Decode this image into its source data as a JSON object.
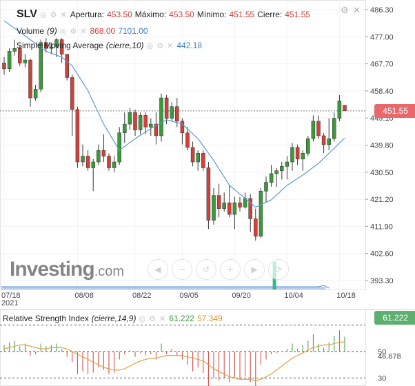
{
  "colors": {
    "up": "#3b9a3b",
    "down": "#d0413b",
    "sma": "#5b9bd5",
    "rsi_lines": "#d0413b",
    "rsi_ma": "#e0a040",
    "volume": "#2bbf7f",
    "last_price_tag": "#e8696b",
    "rsi_tag": "#5daf6f"
  },
  "header": {
    "ticker": "SLV",
    "open_label": "Apertura:",
    "open_value": "453.50",
    "high_label": "Máximo:",
    "high_value": "453.50",
    "low_label": "Mínimo:",
    "low_value": "451.55",
    "close_label": "Cierre:",
    "close_value": "451.55",
    "volume_label": "Volume",
    "volume_period": "(9)",
    "volume_value": "868.00",
    "volume_avg": "7101.00",
    "sma_label": "Simple Moving Average",
    "sma_params": "(cierre,10)",
    "sma_value": "442.18",
    "last_price_tag": "451.55",
    "controls": "◎ ⚙ ✕",
    "gear_icon": "⚙",
    "close_icon": "✕"
  },
  "rsi_header": {
    "label": "Relative Strength Index",
    "params": "(cierre,14,9)",
    "value": "61.222",
    "ma_value": "57.349",
    "tag": "61.222"
  },
  "watermark": {
    "brand": "Investing",
    "suffix": ".com"
  },
  "nav_buttons": [
    "◀",
    "－",
    "↺",
    "＋",
    "▶",
    "⟳"
  ],
  "chart_data": {
    "type": "candlestick",
    "y_ticks": [
      486.3,
      477.0,
      467.7,
      458.4,
      449.1,
      439.8,
      430.5,
      421.2,
      411.9,
      402.6,
      393.3
    ],
    "y_tick_labels": [
      "486.30",
      "477.00",
      "467.70",
      "458.40",
      "449.10",
      "439.80",
      "430.50",
      "421.20",
      "411.90",
      "402.60",
      "393.30"
    ],
    "x_labels": [
      "07/18\n2021",
      "08/08",
      "08/22",
      "09/05",
      "09/20",
      "10/04",
      "10/18"
    ],
    "last_price": 451.55,
    "candles": [
      {
        "o": 468.0,
        "h": 470.0,
        "l": 464.0,
        "c": 466.0
      },
      {
        "o": 466.0,
        "h": 473.0,
        "l": 465.0,
        "c": 472.0
      },
      {
        "o": 472.0,
        "h": 476.0,
        "l": 470.5,
        "c": 473.0
      },
      {
        "o": 473.0,
        "h": 474.0,
        "l": 467.0,
        "c": 468.0
      },
      {
        "o": 468.0,
        "h": 471.0,
        "l": 466.5,
        "c": 469.0
      },
      {
        "o": 469.0,
        "h": 469.5,
        "l": 453.0,
        "c": 456.0
      },
      {
        "o": 456.0,
        "h": 460.5,
        "l": 455.0,
        "c": 459.0
      },
      {
        "o": 459.0,
        "h": 476.0,
        "l": 458.0,
        "c": 475.0
      },
      {
        "o": 475.0,
        "h": 476.5,
        "l": 471.5,
        "c": 473.0
      },
      {
        "o": 473.0,
        "h": 475.0,
        "l": 471.0,
        "c": 473.5
      },
      {
        "o": 473.5,
        "h": 476.5,
        "l": 470.0,
        "c": 476.0
      },
      {
        "o": 476.0,
        "h": 476.5,
        "l": 468.0,
        "c": 471.0
      },
      {
        "o": 471.0,
        "h": 471.0,
        "l": 462.0,
        "c": 463.0
      },
      {
        "o": 463.0,
        "h": 464.0,
        "l": 443.0,
        "c": 452.0
      },
      {
        "o": 452.0,
        "h": 453.0,
        "l": 432.0,
        "c": 434.0
      },
      {
        "o": 434.0,
        "h": 440.0,
        "l": 432.5,
        "c": 436.0
      },
      {
        "o": 436.0,
        "h": 438.0,
        "l": 431.0,
        "c": 432.0
      },
      {
        "o": 432.0,
        "h": 435.0,
        "l": 424.0,
        "c": 434.0
      },
      {
        "o": 434.0,
        "h": 440.0,
        "l": 433.0,
        "c": 438.0
      },
      {
        "o": 438.0,
        "h": 443.5,
        "l": 434.0,
        "c": 436.0
      },
      {
        "o": 436.0,
        "h": 437.0,
        "l": 431.0,
        "c": 432.0
      },
      {
        "o": 432.0,
        "h": 436.0,
        "l": 430.5,
        "c": 434.0
      },
      {
        "o": 434.0,
        "h": 446.0,
        "l": 433.0,
        "c": 444.0
      },
      {
        "o": 444.0,
        "h": 451.0,
        "l": 440.5,
        "c": 447.0
      },
      {
        "o": 447.0,
        "h": 452.5,
        "l": 445.0,
        "c": 451.0
      },
      {
        "o": 451.0,
        "h": 452.0,
        "l": 443.0,
        "c": 445.0
      },
      {
        "o": 445.0,
        "h": 451.0,
        "l": 443.5,
        "c": 450.0
      },
      {
        "o": 450.0,
        "h": 451.0,
        "l": 443.5,
        "c": 446.0
      },
      {
        "o": 446.0,
        "h": 449.0,
        "l": 443.0,
        "c": 447.0
      },
      {
        "o": 447.0,
        "h": 451.0,
        "l": 440.0,
        "c": 443.0
      },
      {
        "o": 443.0,
        "h": 457.5,
        "l": 441.0,
        "c": 456.0
      },
      {
        "o": 456.0,
        "h": 457.0,
        "l": 447.0,
        "c": 449.0
      },
      {
        "o": 449.0,
        "h": 454.5,
        "l": 448.0,
        "c": 453.0
      },
      {
        "o": 453.0,
        "h": 456.0,
        "l": 446.0,
        "c": 448.0
      },
      {
        "o": 448.0,
        "h": 449.0,
        "l": 440.0,
        "c": 444.0
      },
      {
        "o": 444.0,
        "h": 446.0,
        "l": 438.0,
        "c": 439.0
      },
      {
        "o": 439.0,
        "h": 441.0,
        "l": 432.5,
        "c": 434.0
      },
      {
        "o": 434.0,
        "h": 438.0,
        "l": 431.0,
        "c": 437.0
      },
      {
        "o": 437.0,
        "h": 438.0,
        "l": 431.0,
        "c": 432.0
      },
      {
        "o": 432.0,
        "h": 434.0,
        "l": 411.0,
        "c": 414.0
      },
      {
        "o": 414.0,
        "h": 425.0,
        "l": 412.5,
        "c": 422.5
      },
      {
        "o": 422.5,
        "h": 426.5,
        "l": 415.0,
        "c": 418.0
      },
      {
        "o": 418.0,
        "h": 423.5,
        "l": 417.0,
        "c": 420.0
      },
      {
        "o": 420.0,
        "h": 426.0,
        "l": 415.0,
        "c": 416.0
      },
      {
        "o": 416.0,
        "h": 422.0,
        "l": 411.0,
        "c": 420.0
      },
      {
        "o": 420.0,
        "h": 422.0,
        "l": 417.0,
        "c": 418.5
      },
      {
        "o": 418.5,
        "h": 423.5,
        "l": 418.0,
        "c": 421.5
      },
      {
        "o": 421.5,
        "h": 423.0,
        "l": 410.0,
        "c": 414.5
      },
      {
        "o": 414.5,
        "h": 418.0,
        "l": 407.0,
        "c": 408.5
      },
      {
        "o": 408.5,
        "h": 425.0,
        "l": 408.0,
        "c": 424.0
      },
      {
        "o": 424.0,
        "h": 429.0,
        "l": 420.0,
        "c": 427.0
      },
      {
        "o": 427.0,
        "h": 433.0,
        "l": 425.5,
        "c": 430.0
      },
      {
        "o": 430.0,
        "h": 432.0,
        "l": 425.5,
        "c": 431.0
      },
      {
        "o": 431.0,
        "h": 434.0,
        "l": 428.0,
        "c": 432.5
      },
      {
        "o": 432.5,
        "h": 436.0,
        "l": 428.0,
        "c": 434.0
      },
      {
        "o": 434.0,
        "h": 440.5,
        "l": 431.0,
        "c": 439.0
      },
      {
        "o": 439.0,
        "h": 440.0,
        "l": 433.0,
        "c": 435.0
      },
      {
        "o": 435.0,
        "h": 438.0,
        "l": 431.0,
        "c": 437.0
      },
      {
        "o": 437.0,
        "h": 443.0,
        "l": 436.0,
        "c": 442.0
      },
      {
        "o": 442.0,
        "h": 450.0,
        "l": 441.0,
        "c": 448.0
      },
      {
        "o": 448.0,
        "h": 450.0,
        "l": 442.0,
        "c": 443.0
      },
      {
        "o": 443.0,
        "h": 444.0,
        "l": 437.0,
        "c": 440.0
      },
      {
        "o": 440.0,
        "h": 449.0,
        "l": 438.0,
        "c": 442.0
      },
      {
        "o": 442.0,
        "h": 451.0,
        "l": 441.0,
        "c": 449.0
      },
      {
        "o": 449.0,
        "h": 457.0,
        "l": 448.0,
        "c": 455.0
      },
      {
        "o": 453.5,
        "h": 453.5,
        "l": 451.55,
        "c": 451.55
      }
    ],
    "sma": [
      {
        "i": 0,
        "v": 482.5
      },
      {
        "i": 5,
        "v": 476.0
      },
      {
        "i": 8,
        "v": 472.0
      },
      {
        "i": 11,
        "v": 470.0
      },
      {
        "i": 13,
        "v": 467.0
      },
      {
        "i": 16,
        "v": 458.5
      },
      {
        "i": 19,
        "v": 447.0
      },
      {
        "i": 22,
        "v": 438.0
      },
      {
        "i": 25,
        "v": 442.0
      },
      {
        "i": 28,
        "v": 445.5
      },
      {
        "i": 31,
        "v": 448.5
      },
      {
        "i": 34,
        "v": 447.0
      },
      {
        "i": 37,
        "v": 442.0
      },
      {
        "i": 40,
        "v": 434.5
      },
      {
        "i": 43,
        "v": 426.0
      },
      {
        "i": 46,
        "v": 421.5
      },
      {
        "i": 48,
        "v": 418.5
      },
      {
        "i": 51,
        "v": 421.0
      },
      {
        "i": 54,
        "v": 426.0
      },
      {
        "i": 57,
        "v": 429.5
      },
      {
        "i": 60,
        "v": 433.5
      },
      {
        "i": 62,
        "v": 437.0
      },
      {
        "i": 65,
        "v": 442.2
      }
    ],
    "rsi_ticks": [
      50,
      30
    ],
    "rsi_tick_labels": [
      "50",
      "30"
    ],
    "rsi_overbought": 70,
    "rsi_value": 61.222,
    "rsi_ma_value": 57.349,
    "rsi_avg_tick": 46.678,
    "rsi_avg_tick_label": "46.678",
    "rsi": [
      55,
      57,
      58,
      54,
      56,
      47,
      48,
      56,
      54,
      55,
      56,
      52,
      46,
      42,
      33,
      35,
      33,
      34,
      38,
      36,
      33,
      34,
      44,
      48,
      51,
      46,
      49,
      47,
      48,
      44,
      56,
      48,
      52,
      47,
      44,
      40,
      35,
      38,
      34,
      22,
      30,
      28,
      30,
      27,
      30,
      29,
      31,
      27,
      24,
      40,
      44,
      48,
      49,
      50,
      52,
      56,
      52,
      55,
      58,
      63,
      56,
      53,
      57,
      62,
      66,
      61.222
    ],
    "rsi_ma": [
      52,
      53,
      54,
      55,
      55,
      54,
      53,
      52,
      52,
      53,
      53,
      53,
      52,
      50,
      48,
      46,
      44,
      42,
      40,
      38,
      37,
      36,
      36,
      37,
      39,
      41,
      43,
      44,
      45,
      45,
      46,
      47,
      47,
      47,
      47,
      46,
      45,
      44,
      43,
      40,
      37,
      35,
      33,
      31,
      30,
      29,
      29,
      29,
      28,
      29,
      31,
      33,
      36,
      39,
      42,
      45,
      47,
      49,
      51,
      53,
      54,
      55,
      55,
      56,
      57,
      57.349
    ]
  }
}
